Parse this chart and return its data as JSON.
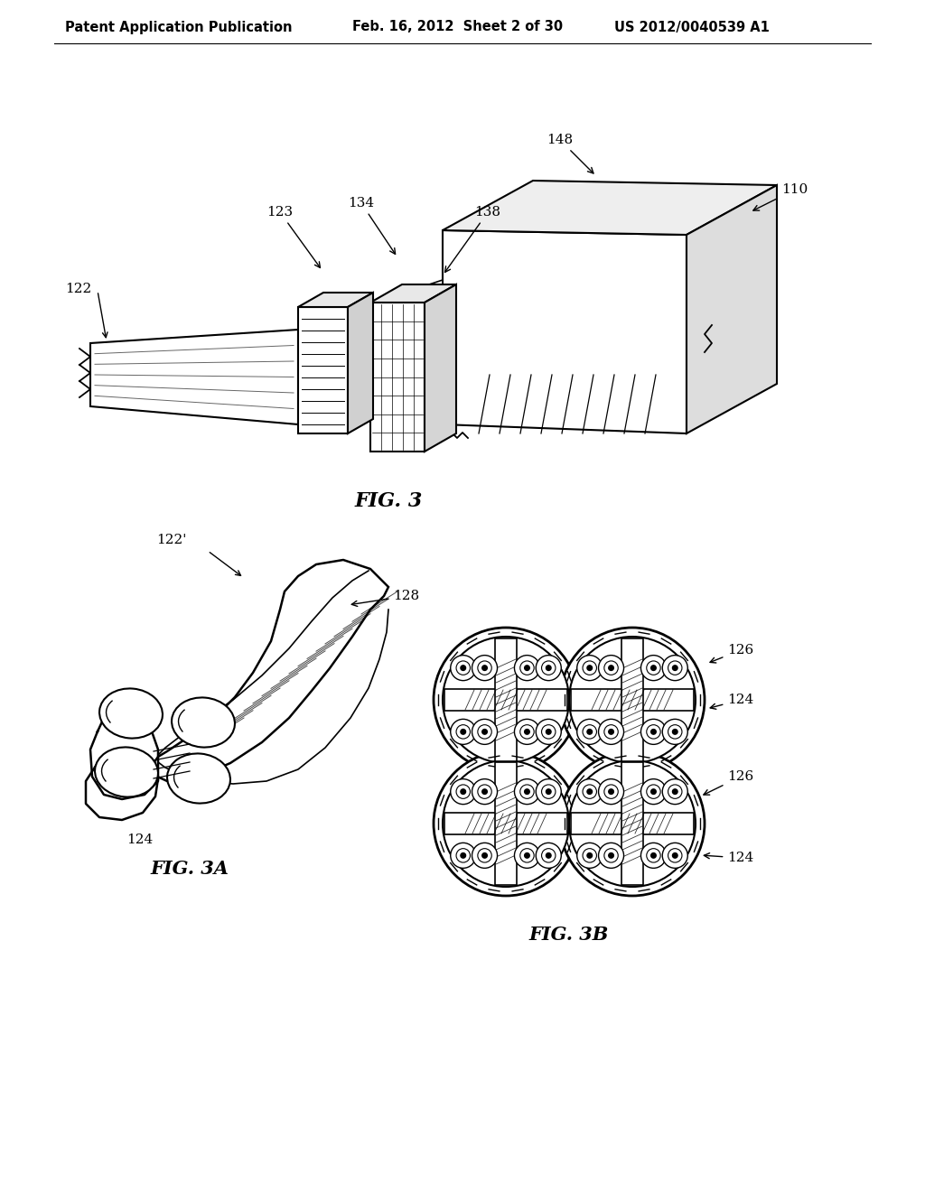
{
  "background_color": "#ffffff",
  "header_left": "Patent Application Publication",
  "header_mid": "Feb. 16, 2012  Sheet 2 of 30",
  "header_right": "US 2012/0040539 A1",
  "fig3_caption": "FIG. 3",
  "fig3a_caption": "FIG. 3A",
  "fig3b_caption": "FIG. 3B",
  "header_fontsize": 10.5,
  "label_fontsize": 11,
  "caption_fontsize": 15
}
